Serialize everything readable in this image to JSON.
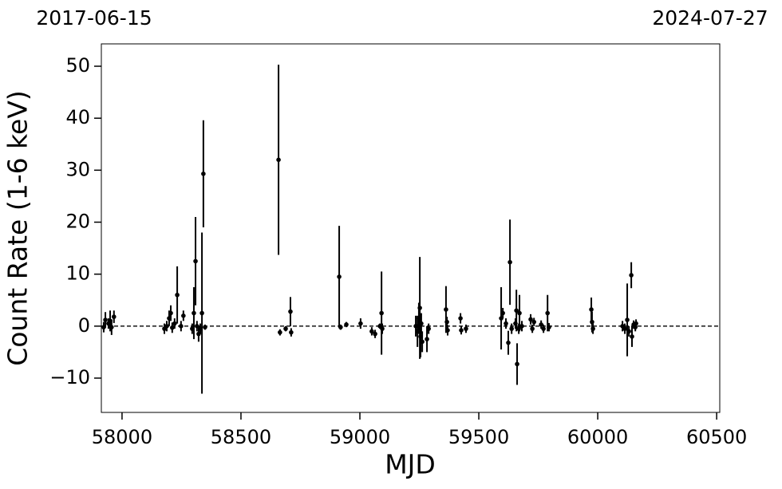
{
  "chart_data": {
    "type": "errorbar",
    "top_labels": [
      "2017-06-15",
      "2024-07-27"
    ],
    "xlabel": "MJD",
    "ylabel": "Count Rate (1-6 keV)",
    "xlim": [
      57913,
      60513
    ],
    "ylim": [
      -16.6,
      54.3
    ],
    "xticks": [
      58000,
      58500,
      59000,
      59500,
      60000,
      60500
    ],
    "yticks": [
      {
        "value": -10,
        "label": "−10"
      },
      0,
      10,
      20,
      30,
      40,
      50
    ],
    "reference_line": 0,
    "color": "#000000",
    "series": [
      {
        "x": [
          57923,
          57930,
          57943,
          57950,
          57956,
          57966,
          58178,
          58188,
          58198,
          58205,
          58211,
          58221,
          58232,
          58248,
          58258,
          58295,
          58302,
          58309,
          58315,
          58322,
          58329,
          58336,
          58342,
          58349,
          58658,
          58664,
          58688,
          58708,
          58711,
          58913,
          58919,
          58943,
          59003,
          59050,
          59064,
          59084,
          59091,
          59094,
          59235,
          59242,
          59248,
          59252,
          59255,
          59258,
          59262,
          59282,
          59289,
          59362,
          59366,
          59369,
          59423,
          59426,
          59446,
          59594,
          59601,
          59614,
          59624,
          59631,
          59638,
          59654,
          59658,
          59661,
          59668,
          59671,
          59681,
          59718,
          59725,
          59732,
          59762,
          59772,
          59789,
          59795,
          59973,
          59976,
          59980,
          60104,
          60114,
          60124,
          60131,
          60141,
          60144,
          60151,
          60158,
          60161
        ],
        "values": [
          -0.2,
          1.2,
          0.5,
          1,
          -0.2,
          1.8,
          -0.5,
          0,
          1.5,
          2.5,
          -0.3,
          0.5,
          6,
          0,
          2,
          -0.5,
          2.5,
          12.5,
          0,
          -1.5,
          -0.5,
          2.5,
          29.3,
          -0.2,
          32,
          -1.2,
          -0.5,
          2.8,
          -1.2,
          9.5,
          -0.2,
          0.3,
          0.5,
          -1,
          -1.5,
          0,
          2.5,
          -0.5,
          0,
          -1,
          1.5,
          3.5,
          -2,
          0.5,
          -3,
          -2.5,
          -0.5,
          3.2,
          0.8,
          -0.8,
          1.5,
          -0.8,
          -0.5,
          1.5,
          2.5,
          0.5,
          -3.2,
          12.3,
          -0.5,
          0.5,
          3,
          -7.3,
          -0.5,
          2.5,
          0,
          1.3,
          -0.5,
          0.8,
          0.3,
          -0.5,
          2.5,
          -0.2,
          3.2,
          0.8,
          -0.5,
          0,
          -0.5,
          1.2,
          -1,
          9.8,
          -2,
          0.3,
          -0.2,
          0.5
        ],
        "errors": [
          1,
          1.5,
          1,
          2,
          1.5,
          1.2,
          1,
          1,
          1.5,
          1.5,
          1,
          1,
          5.5,
          1,
          1,
          1,
          5,
          8.5,
          1,
          1.5,
          1,
          15.5,
          10.3,
          0.5,
          18.3,
          0.6,
          0.5,
          2.8,
          0.8,
          9.8,
          0.5,
          0.5,
          1,
          0.8,
          0.8,
          0.5,
          8,
          1,
          2,
          3,
          3,
          9.8,
          4,
          2,
          2,
          2.5,
          1,
          4.5,
          1,
          1,
          1,
          0.8,
          0.8,
          6,
          1,
          1,
          2.3,
          8.2,
          1,
          1,
          4,
          4,
          1,
          3.5,
          1,
          1,
          0.8,
          0.8,
          0.8,
          0.8,
          3.5,
          0.8,
          2.3,
          2,
          1,
          1,
          1,
          7,
          1,
          2.5,
          2,
          0.8,
          0.8,
          0.8
        ]
      }
    ]
  }
}
